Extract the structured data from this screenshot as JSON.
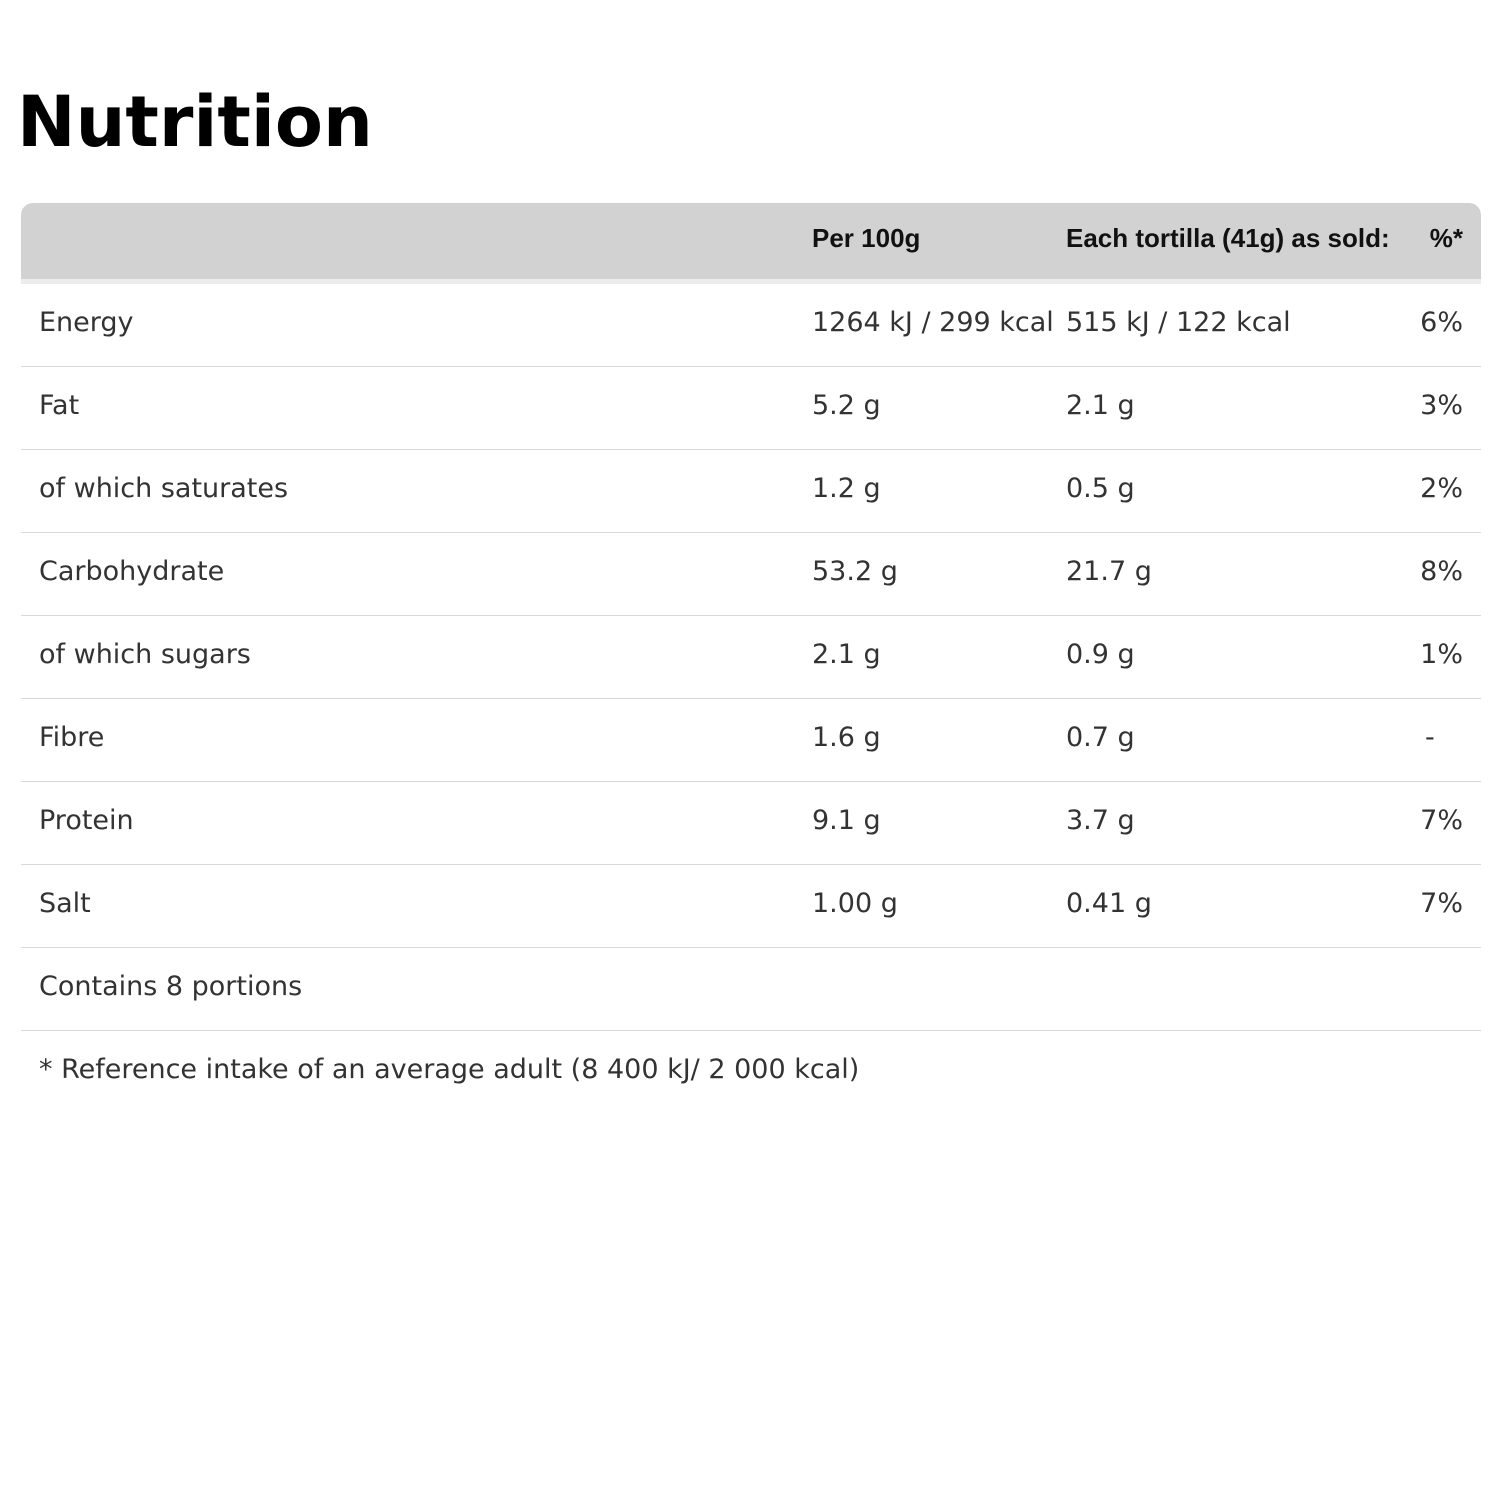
{
  "title": "Nutrition",
  "table": {
    "headers": {
      "label": "",
      "per100g": "Per 100g",
      "per_portion": "Each tortilla (41g) as sold:",
      "ri": "%*"
    },
    "rows": [
      {
        "name": "Energy",
        "per100g": "1264 kJ / 299 kcal",
        "per_portion": "515 kJ / 122 kcal",
        "ri": "6%"
      },
      {
        "name": "Fat",
        "per100g": "5.2 g",
        "per_portion": "2.1 g",
        "ri": "3%"
      },
      {
        "name": "of which saturates",
        "per100g": "1.2 g",
        "per_portion": "0.5 g",
        "ri": "2%"
      },
      {
        "name": "Carbohydrate",
        "per100g": "53.2 g",
        "per_portion": "21.7 g",
        "ri": "8%"
      },
      {
        "name": "of which sugars",
        "per100g": "2.1 g",
        "per_portion": "0.9 g",
        "ri": "1%"
      },
      {
        "name": "Fibre",
        "per100g": "1.6 g",
        "per_portion": "0.7 g",
        "ri": "-"
      },
      {
        "name": "Protein",
        "per100g": "9.1 g",
        "per_portion": "3.7 g",
        "ri": "7%"
      },
      {
        "name": "Salt",
        "per100g": "1.00 g",
        "per_portion": "0.41 g",
        "ri": "7%"
      }
    ],
    "portions": "Contains 8 portions",
    "footnote": "* Reference intake of an average adult (8 400 kJ/ 2 000 kcal)"
  },
  "colors": {
    "header_bg": "#d2d2d2",
    "row_border": "#d8d8d8",
    "text": "#333333",
    "title": "#000000"
  }
}
